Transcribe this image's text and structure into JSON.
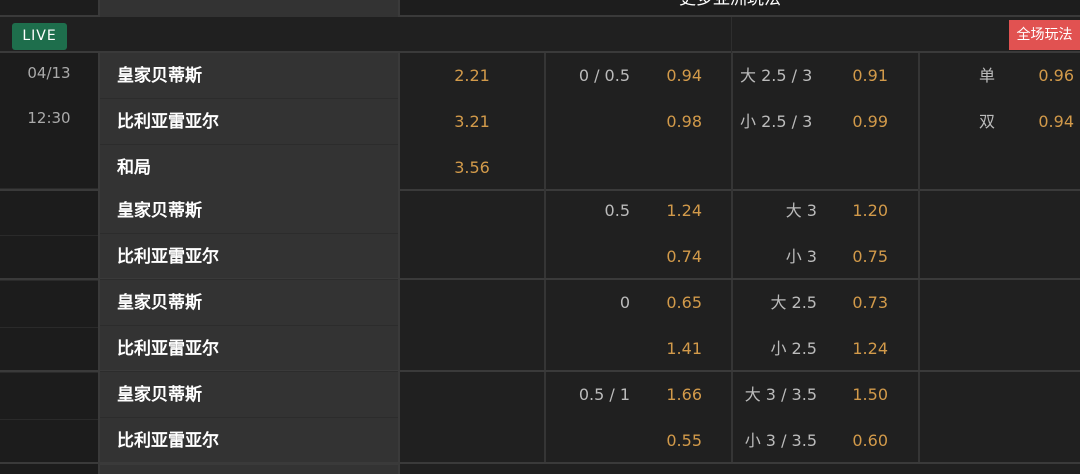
{
  "header": {
    "title": "更多亚洲玩法",
    "live_label": "LIVE",
    "full_button": "全场玩法"
  },
  "match": {
    "date": "04/13",
    "time": "12:30"
  },
  "groups": [
    {
      "teams": [
        "皇家贝蒂斯",
        "比利亚雷亚尔",
        "和局"
      ],
      "x12": [
        "2.21",
        "3.21",
        "3.56"
      ],
      "hcap": [
        {
          "line": "0 / 0.5",
          "odd": "0.94"
        },
        {
          "line": "",
          "odd": "0.98"
        }
      ],
      "total": [
        {
          "line": "大 2.5 / 3",
          "odd": "0.91"
        },
        {
          "line": "小 2.5 / 3",
          "odd": "0.99"
        }
      ],
      "oe": [
        {
          "line": "单",
          "odd": "0.96"
        },
        {
          "line": "双",
          "odd": "0.94"
        }
      ]
    },
    {
      "teams": [
        "皇家贝蒂斯",
        "比利亚雷亚尔"
      ],
      "hcap": [
        {
          "line": "0.5",
          "odd": "1.24"
        },
        {
          "line": "",
          "odd": "0.74"
        }
      ],
      "total": [
        {
          "line": "大 3",
          "odd": "1.20"
        },
        {
          "line": "小 3",
          "odd": "0.75"
        }
      ]
    },
    {
      "teams": [
        "皇家贝蒂斯",
        "比利亚雷亚尔"
      ],
      "hcap": [
        {
          "line": "0",
          "odd": "0.65"
        },
        {
          "line": "",
          "odd": "1.41"
        }
      ],
      "total": [
        {
          "line": "大 2.5",
          "odd": "0.73"
        },
        {
          "line": "小 2.5",
          "odd": "1.24"
        }
      ]
    },
    {
      "teams": [
        "皇家贝蒂斯",
        "比利亚雷亚尔"
      ],
      "hcap": [
        {
          "line": "0.5 / 1",
          "odd": "1.66"
        },
        {
          "line": "",
          "odd": "0.55"
        }
      ],
      "total": [
        {
          "line": "大 3 / 3.5",
          "odd": "1.50"
        },
        {
          "line": "小 3 / 3.5",
          "odd": "0.60"
        }
      ]
    }
  ],
  "colors": {
    "odds": "#d29a4a",
    "live": "#1e6e4c",
    "full_button": "#e15251"
  }
}
